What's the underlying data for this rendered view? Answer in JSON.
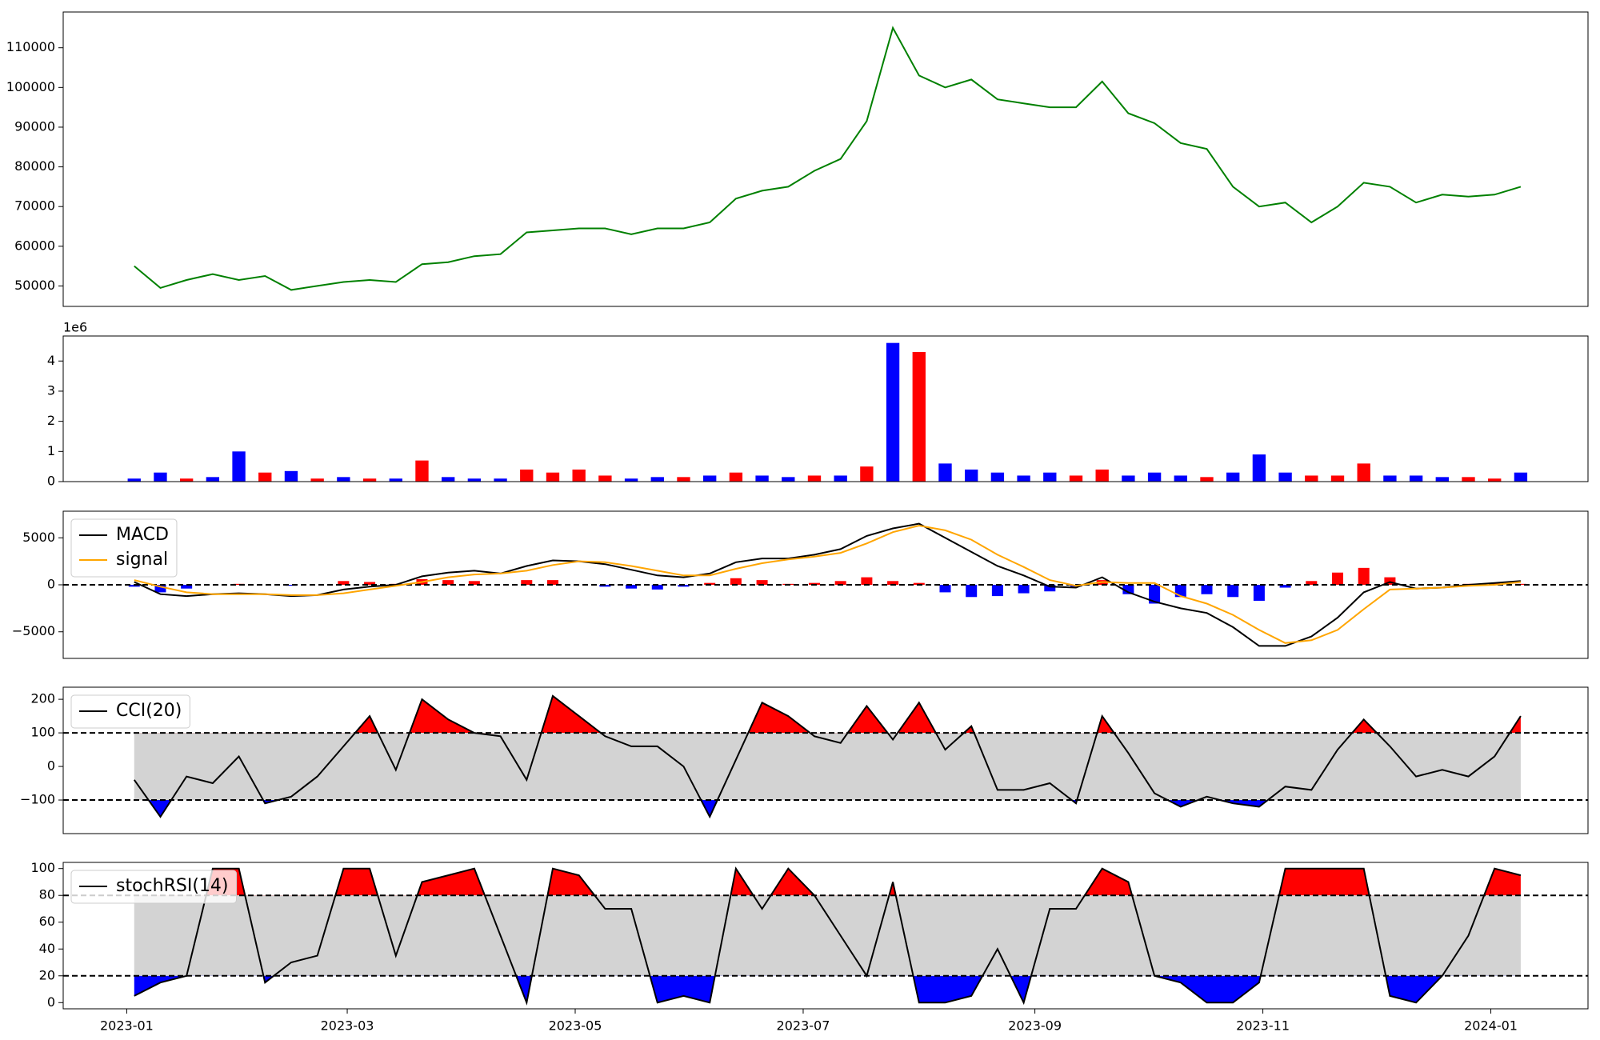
{
  "chart_data": [
    {
      "type": "line",
      "color": "green",
      "x": [
        2,
        9,
        16,
        23,
        30,
        37,
        44,
        51,
        58,
        65,
        72,
        79,
        86,
        93,
        100,
        107,
        114,
        121,
        128,
        135,
        142,
        149,
        156,
        163,
        170,
        177,
        184,
        191,
        198,
        205,
        212,
        219,
        226,
        233,
        240,
        247,
        254,
        261,
        268,
        275,
        282,
        289,
        296,
        303,
        310,
        317,
        324,
        331,
        338,
        345,
        352,
        359,
        366,
        373
      ],
      "values": [
        55000,
        49500,
        51500,
        53000,
        51500,
        52500,
        49000,
        50000,
        51000,
        51500,
        51000,
        55500,
        56000,
        57500,
        58000,
        63500,
        64000,
        64500,
        64500,
        63000,
        64500,
        64500,
        66000,
        72000,
        74000,
        75000,
        79000,
        82000,
        91500,
        115000,
        103000,
        100000,
        102000,
        97000,
        96000,
        95000,
        95000,
        101500,
        93500,
        91000,
        86000,
        84500,
        75000,
        70000,
        71000,
        66000,
        70000,
        76000,
        75000,
        71000,
        73000,
        72500,
        73000,
        75000
      ],
      "xlim": [
        -17,
        391
      ],
      "ylim": [
        44850,
        119010
      ],
      "yticks": [
        50000,
        60000,
        70000,
        80000,
        90000,
        100000,
        110000
      ]
    },
    {
      "type": "bar",
      "offset_label": "1e6",
      "x": [
        2,
        9,
        16,
        23,
        30,
        37,
        44,
        51,
        58,
        65,
        72,
        79,
        86,
        93,
        100,
        107,
        114,
        121,
        128,
        135,
        142,
        149,
        156,
        163,
        170,
        177,
        184,
        191,
        198,
        205,
        212,
        219,
        226,
        233,
        240,
        247,
        254,
        261,
        268,
        275,
        282,
        289,
        296,
        303,
        310,
        317,
        324,
        331,
        338,
        345,
        352,
        359,
        366,
        373
      ],
      "values": [
        100000,
        300000,
        100000,
        150000,
        1000000,
        300000,
        350000,
        100000,
        150000,
        100000,
        100000,
        700000,
        150000,
        100000,
        100000,
        400000,
        300000,
        400000,
        200000,
        100000,
        150000,
        150000,
        200000,
        300000,
        200000,
        150000,
        200000,
        200000,
        500000,
        4600000,
        4300000,
        600000,
        400000,
        300000,
        200000,
        300000,
        200000,
        400000,
        200000,
        300000,
        200000,
        150000,
        300000,
        900000,
        300000,
        200000,
        200000,
        600000,
        200000,
        200000,
        150000,
        150000,
        100000,
        300000
      ],
      "colors": [
        "blue",
        "blue",
        "red",
        "blue",
        "blue",
        "red",
        "blue",
        "red",
        "blue",
        "red",
        "blue",
        "red",
        "blue",
        "blue",
        "blue",
        "red",
        "red",
        "red",
        "red",
        "blue",
        "blue",
        "red",
        "blue",
        "red",
        "blue",
        "blue",
        "red",
        "blue",
        "red",
        "blue",
        "red",
        "blue",
        "blue",
        "blue",
        "blue",
        "blue",
        "red",
        "red",
        "blue",
        "blue",
        "blue",
        "red",
        "blue",
        "blue",
        "blue",
        "red",
        "red",
        "red",
        "blue",
        "blue",
        "blue",
        "red",
        "red",
        "blue"
      ],
      "xlim": [
        -17,
        391
      ],
      "ylim": [
        0,
        4830000
      ],
      "yticks": [
        0,
        {
          "value": 1000000,
          "label": "1"
        },
        {
          "value": 2000000,
          "label": "2"
        },
        {
          "value": 3000000,
          "label": "3"
        },
        {
          "value": 4000000,
          "label": "4"
        }
      ]
    },
    {
      "type": "macd",
      "zero_line": 0,
      "x": [
        2,
        9,
        16,
        23,
        30,
        37,
        44,
        51,
        58,
        65,
        72,
        79,
        86,
        93,
        100,
        107,
        114,
        121,
        128,
        135,
        142,
        149,
        156,
        163,
        170,
        177,
        184,
        191,
        198,
        205,
        212,
        219,
        226,
        233,
        240,
        247,
        254,
        261,
        268,
        275,
        282,
        289,
        296,
        303,
        310,
        317,
        324,
        331,
        338,
        345,
        352,
        359,
        366,
        373
      ],
      "series": [
        {
          "name": "MACD",
          "color": "black",
          "values": [
            300,
            -1000,
            -1200,
            -1000,
            -900,
            -1000,
            -1200,
            -1100,
            -500,
            -200,
            0,
            900,
            1300,
            1500,
            1200,
            2000,
            2600,
            2500,
            2200,
            1600,
            1000,
            800,
            1200,
            2400,
            2800,
            2800,
            3200,
            3800,
            5200,
            6000,
            6500,
            5000,
            3500,
            2000,
            1000,
            -200,
            -300,
            800,
            -800,
            -1800,
            -2500,
            -3000,
            -4500,
            -6500,
            -6500,
            -5500,
            -3500,
            -800,
            300,
            -400,
            -300,
            0,
            200,
            400
          ]
        },
        {
          "name": "signal",
          "color": "orange",
          "values": [
            500,
            -200,
            -800,
            -1000,
            -1000,
            -1000,
            -1100,
            -1100,
            -900,
            -500,
            -100,
            300,
            800,
            1100,
            1200,
            1500,
            2100,
            2500,
            2400,
            2000,
            1500,
            1000,
            1000,
            1700,
            2300,
            2700,
            3000,
            3400,
            4400,
            5600,
            6300,
            5800,
            4800,
            3200,
            1900,
            500,
            -100,
            300,
            200,
            200,
            -1200,
            -2000,
            -3200,
            -4800,
            -6200,
            -5900,
            -4800,
            -2600,
            -500,
            -400,
            -300,
            -100,
            0,
            300
          ]
        }
      ],
      "histogram": {
        "up_color": "red",
        "down_color": "blue",
        "values": [
          -200,
          -800,
          -400,
          0,
          100,
          0,
          -100,
          0,
          400,
          300,
          100,
          600,
          500,
          400,
          0,
          500,
          500,
          0,
          -200,
          -400,
          -500,
          -200,
          200,
          700,
          500,
          100,
          200,
          400,
          800,
          400,
          200,
          -800,
          -1300,
          -1200,
          -900,
          -700,
          -200,
          500,
          -1000,
          -2000,
          -1300,
          -1000,
          -1300,
          -1700,
          -300,
          400,
          1300,
          1800,
          800,
          0,
          0,
          100,
          200,
          100
        ]
      },
      "xlim": [
        -17,
        391
      ],
      "ylim": [
        -7830,
        7830
      ],
      "yticks": [
        {
          "value": -5000,
          "label": "−5000"
        },
        0,
        5000
      ]
    },
    {
      "type": "band",
      "upper": 100,
      "lower": -100,
      "upper_fill": "red",
      "lower_fill": "blue",
      "band_fill": "lightgray",
      "x": [
        2,
        9,
        16,
        23,
        30,
        37,
        44,
        51,
        58,
        65,
        72,
        79,
        86,
        93,
        100,
        107,
        114,
        121,
        128,
        135,
        142,
        149,
        156,
        163,
        170,
        177,
        184,
        191,
        198,
        205,
        212,
        219,
        226,
        233,
        240,
        247,
        254,
        261,
        268,
        275,
        282,
        289,
        296,
        303,
        310,
        317,
        324,
        331,
        338,
        345,
        352,
        359,
        366,
        373
      ],
      "series": [
        {
          "name": "CCI(20)",
          "color": "black",
          "values": [
            -40,
            -150,
            -30,
            -50,
            30,
            -110,
            -90,
            -30,
            60,
            150,
            -10,
            200,
            140,
            100,
            90,
            -40,
            210,
            150,
            90,
            60,
            60,
            0,
            -150,
            20,
            190,
            150,
            90,
            70,
            180,
            80,
            190,
            50,
            120,
            -70,
            -70,
            -50,
            -110,
            150,
            40,
            -80,
            -120,
            -90,
            -110,
            -120,
            -60,
            -70,
            50,
            140,
            60,
            -30,
            -10,
            -30,
            30,
            150
          ]
        }
      ],
      "xlim": [
        -17,
        391
      ],
      "ylim": [
        -200,
        236
      ],
      "yticks": [
        {
          "value": -100,
          "label": "−100"
        },
        0,
        100,
        200
      ]
    },
    {
      "type": "band",
      "upper": 80,
      "lower": 20,
      "upper_fill": "red",
      "lower_fill": "blue",
      "band_fill": "lightgray",
      "x": [
        2,
        9,
        16,
        23,
        30,
        37,
        44,
        51,
        58,
        65,
        72,
        79,
        86,
        93,
        100,
        107,
        114,
        121,
        128,
        135,
        142,
        149,
        156,
        163,
        170,
        177,
        184,
        191,
        198,
        205,
        212,
        219,
        226,
        233,
        240,
        247,
        254,
        261,
        268,
        275,
        282,
        289,
        296,
        303,
        310,
        317,
        324,
        331,
        338,
        345,
        352,
        359,
        366,
        373
      ],
      "series": [
        {
          "name": "stochRSI(14)",
          "color": "black",
          "values": [
            5,
            15,
            20,
            100,
            100,
            15,
            30,
            35,
            100,
            100,
            35,
            90,
            95,
            100,
            50,
            0,
            100,
            95,
            70,
            70,
            0,
            5,
            0,
            100,
            70,
            100,
            80,
            50,
            20,
            90,
            0,
            0,
            5,
            40,
            0,
            70,
            70,
            100,
            90,
            20,
            15,
            0,
            0,
            15,
            100,
            100,
            100,
            100,
            5,
            0,
            20,
            50,
            100,
            95
          ]
        }
      ],
      "xlim": [
        -17,
        391
      ],
      "ylim": [
        -4.6,
        104.6
      ],
      "yticks": [
        0,
        20,
        40,
        60,
        80,
        100
      ],
      "xticks": [
        {
          "value": 0,
          "label": "2023-01"
        },
        {
          "value": 59,
          "label": "2023-03"
        },
        {
          "value": 120,
          "label": "2023-05"
        },
        {
          "value": 181,
          "label": "2023-07"
        },
        {
          "value": 243,
          "label": "2023-09"
        },
        {
          "value": 304,
          "label": "2023-11"
        },
        {
          "value": 365,
          "label": "2024-01"
        }
      ]
    }
  ]
}
